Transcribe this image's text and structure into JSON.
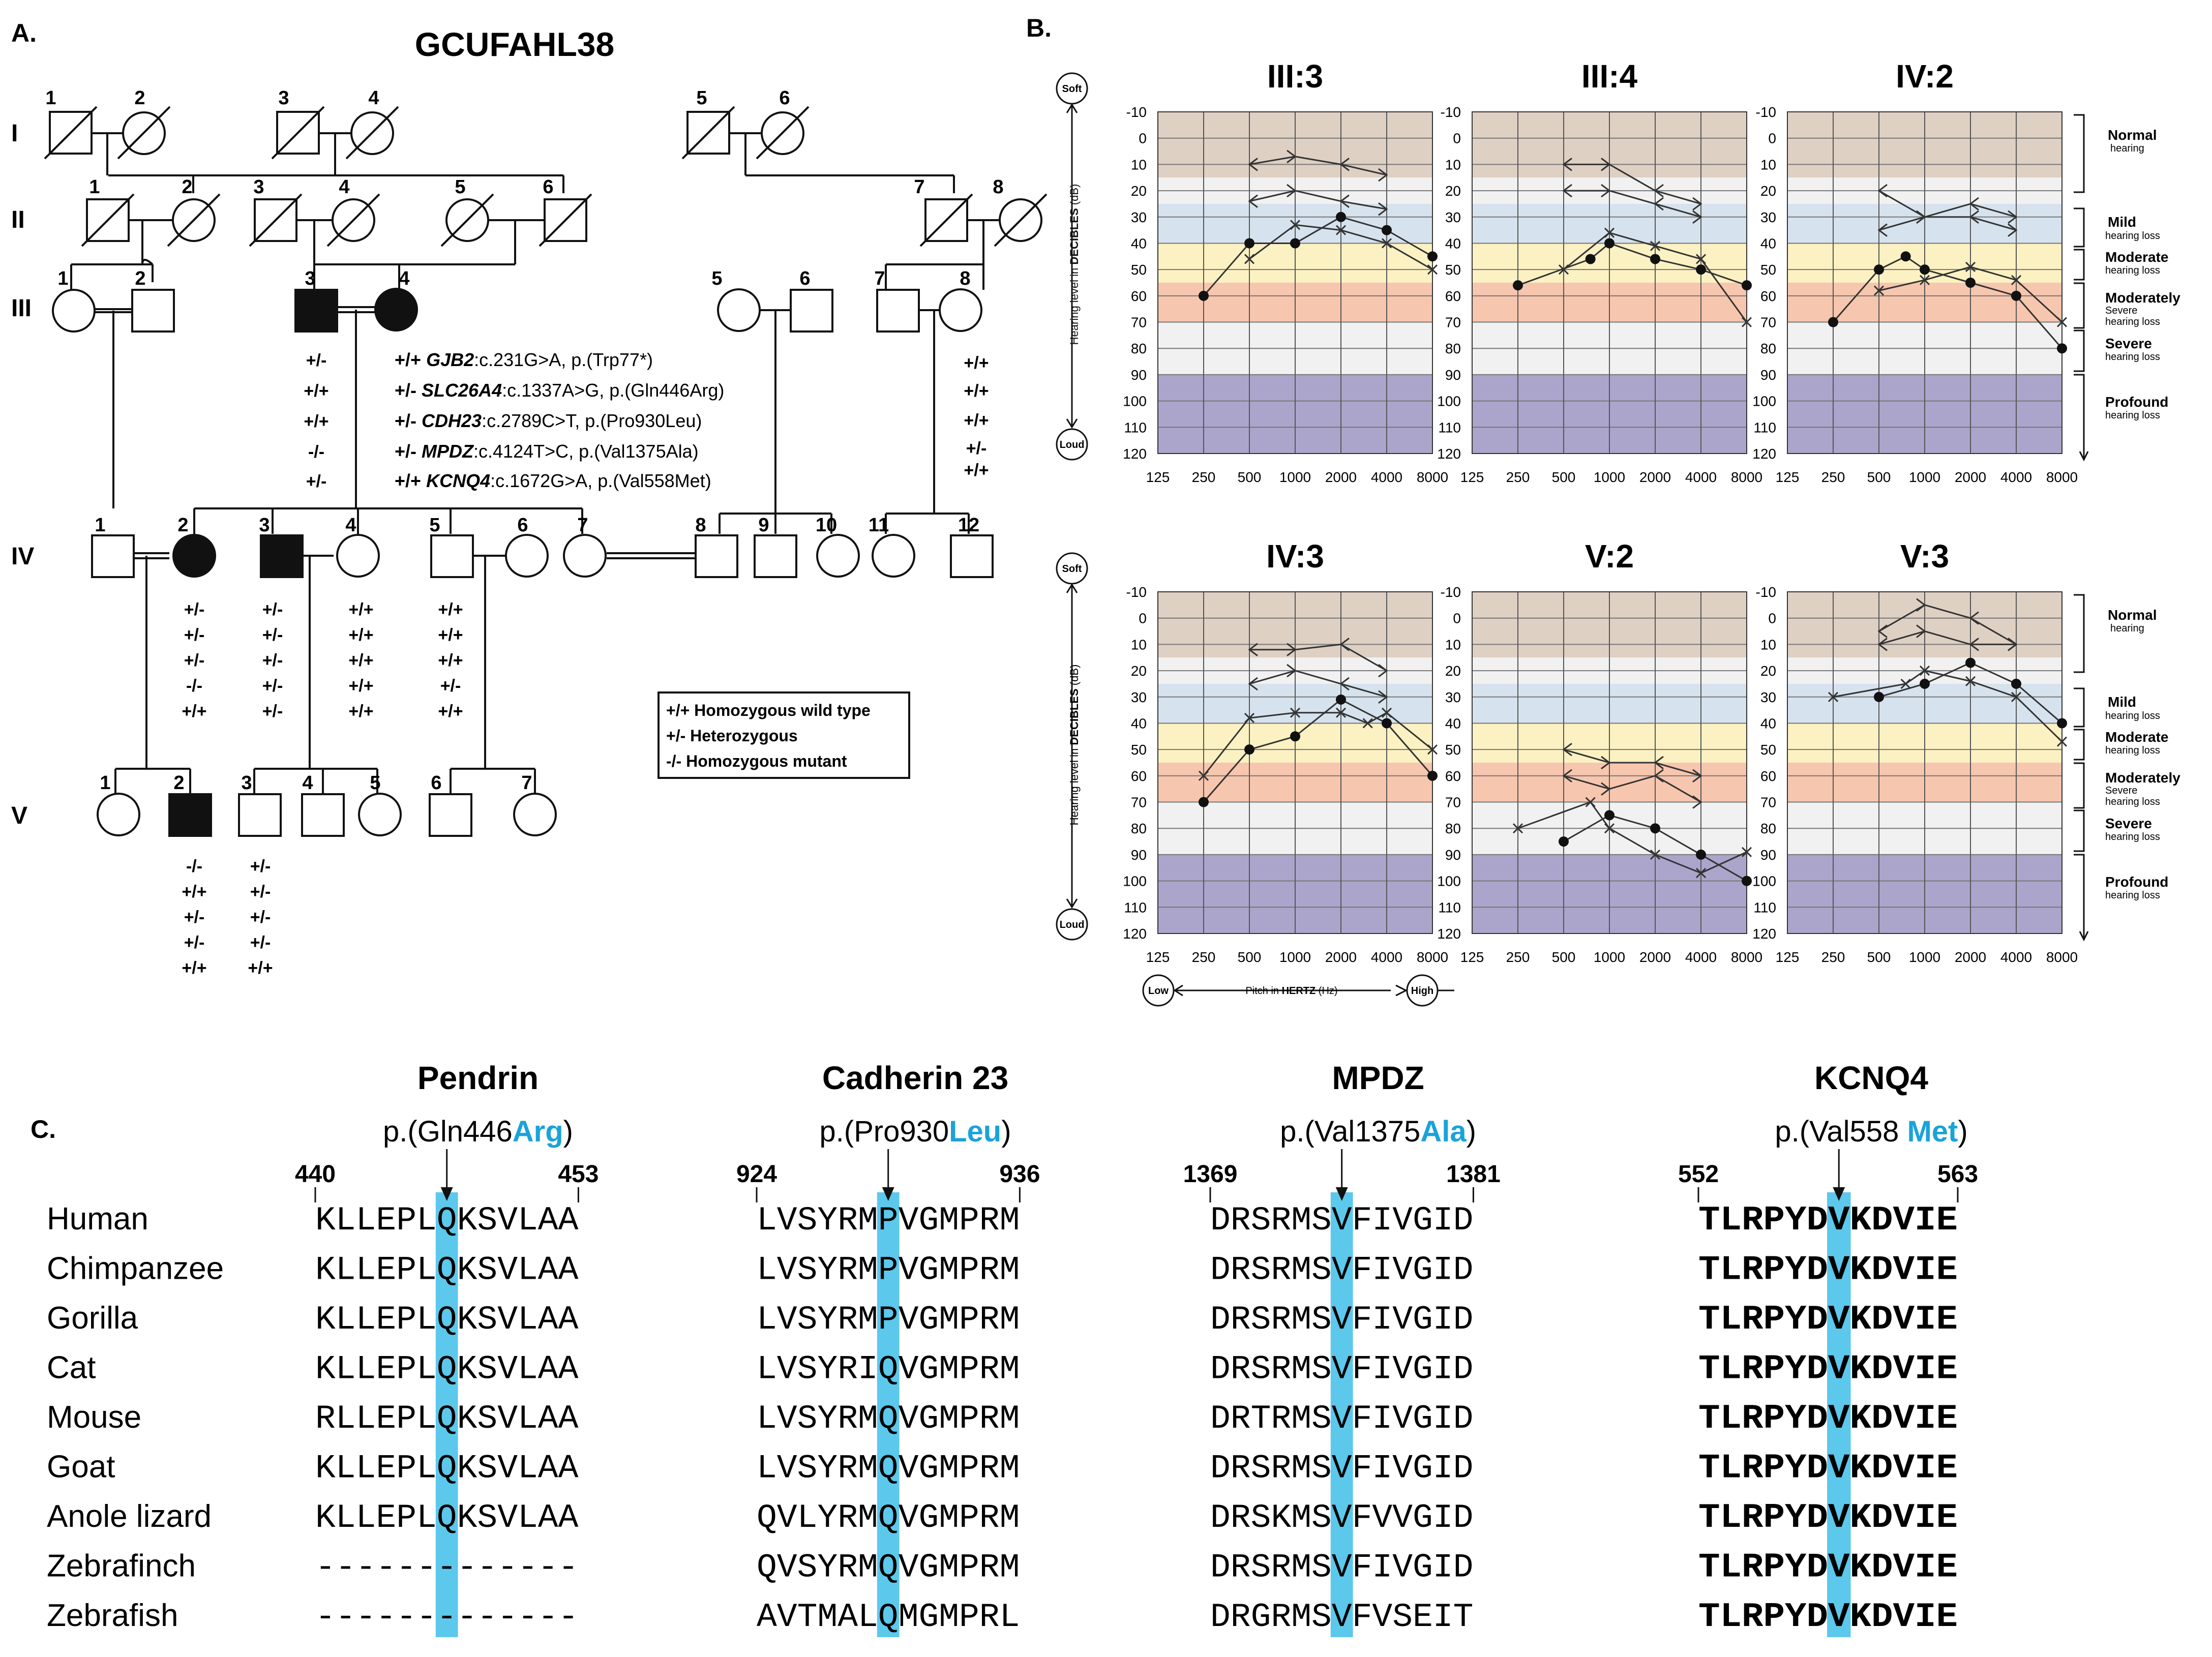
{
  "figure": {
    "panel_labels": {
      "a": "A.",
      "b": "B.",
      "c": "C."
    }
  },
  "pedigree": {
    "family_id": "GCUFAHL38",
    "generations": [
      "I",
      "II",
      "III",
      "IV",
      "V"
    ],
    "individual_numbers": {
      "I": [
        "1",
        "2",
        "3",
        "4",
        "5",
        "6"
      ],
      "II": [
        "1",
        "2",
        "3",
        "4",
        "5",
        "6",
        "7",
        "8"
      ],
      "III": [
        "1",
        "2",
        "3",
        "4",
        "5",
        "6",
        "7",
        "8"
      ],
      "IV": [
        "1",
        "2",
        "3",
        "4",
        "5",
        "6",
        "7",
        "8",
        "9",
        "10",
        "11",
        "12"
      ],
      "V": [
        "1",
        "2",
        "3",
        "4",
        "5",
        "6",
        "7"
      ]
    },
    "variants": [
      {
        "gene": "GJB2",
        "change": ":c.231G>A, p.(Trp77*)",
        "proband_genotype": "+/+"
      },
      {
        "gene": "SLC26A4",
        "change": ":c.1337A>G, p.(Gln446Arg)",
        "proband_genotype": "+/-"
      },
      {
        "gene": "CDH23",
        "change": ":c.2789C>T, p.(Pro930Leu)",
        "proband_genotype": "+/-"
      },
      {
        "gene": "MPDZ",
        "change": ":c.4124T>C, p.(Val1375Ala)",
        "proband_genotype": "+/-"
      },
      {
        "gene": "KCNQ4",
        "change": ":c.1672G>A, p.(Val558Met)",
        "proband_genotype": "+/+"
      }
    ],
    "genotypes": {
      "III3": [
        "+/-",
        "+/+",
        "+/+",
        "-/-",
        "+/-"
      ],
      "III8": [
        "+/+",
        "+/+",
        "+/+",
        "+/-",
        "+/+"
      ],
      "IV2": [
        "+/-",
        "+/-",
        "+/-",
        "-/-",
        "+/+"
      ],
      "IV3": [
        "+/-",
        "+/-",
        "+/-",
        "+/-",
        "+/-"
      ],
      "IV4": [
        "+/+",
        "+/+",
        "+/+",
        "+/+",
        "+/+"
      ],
      "IV5": [
        "+/+",
        "+/+",
        "+/+",
        "+/-",
        "+/+"
      ],
      "V2": [
        "-/-",
        "+/+",
        "+/-",
        "+/-",
        "+/+"
      ],
      "V3": [
        "+/-",
        "+/-",
        "+/-",
        "+/-",
        "+/+"
      ]
    },
    "legend": [
      {
        "symbol": "+/+",
        "text": "Homozygous wild type"
      },
      {
        "symbol": "+/-",
        "text": "Heterozygous"
      },
      {
        "symbol": "-/-",
        "text": "Homozygous mutant"
      }
    ]
  },
  "audiogram_labels": {
    "y_axis_title_prefix": "Hearing level in ",
    "y_axis_title_bold": "DECIBLES",
    "y_axis_title_suffix": " (dB)",
    "soft": "Soft",
    "loud": "Loud",
    "x_axis_prefix": "Pitch in ",
    "x_axis_bold": "HERTZ",
    "x_axis_suffix": " (Hz)",
    "low": "Low",
    "high": "High",
    "y_ticks": [
      "-10",
      "0",
      "10",
      "20",
      "30",
      "40",
      "50",
      "60",
      "70",
      "80",
      "90",
      "100",
      "110",
      "120"
    ],
    "x_ticks": [
      "125",
      "250",
      "500",
      "1000",
      "2000",
      "4000",
      "8000"
    ]
  },
  "hearing_categories": [
    {
      "title": "Normal",
      "sub": "hearing"
    },
    {
      "title": "Mild",
      "sub": "hearing loss"
    },
    {
      "title": "Moderate",
      "sub": "hearing loss"
    },
    {
      "title": "Moderately",
      "sub": "Severe",
      "sub2": "hearing loss"
    },
    {
      "title": "Severe",
      "sub": "hearing loss"
    },
    {
      "title": "Profound",
      "sub": "hearing loss"
    }
  ],
  "chart_data": [
    {
      "type": "line",
      "title": "III:3",
      "xlabel": "Pitch in HERTZ (Hz)",
      "ylabel": "Hearing level in DECIBLES (dB)",
      "x": [
        250,
        500,
        1000,
        2000,
        4000,
        8000
      ],
      "ylim": [
        -10,
        120
      ],
      "series": [
        {
          "name": "air-dot",
          "marker": "dot",
          "points": [
            [
              250,
              60
            ],
            [
              500,
              40
            ],
            [
              1000,
              40
            ],
            [
              2000,
              30
            ],
            [
              4000,
              35
            ],
            [
              8000,
              45
            ]
          ]
        },
        {
          "name": "air-x",
          "marker": "x",
          "points": [
            [
              500,
              46
            ],
            [
              1000,
              33
            ],
            [
              2000,
              35
            ],
            [
              4000,
              40
            ],
            [
              8000,
              50
            ]
          ]
        },
        {
          "name": "bone-1",
          "marker": "arrow",
          "points": [
            [
              500,
              10
            ],
            [
              1000,
              7
            ],
            [
              2000,
              10
            ],
            [
              4000,
              14
            ]
          ]
        },
        {
          "name": "bone-2",
          "marker": "arrow",
          "points": [
            [
              500,
              24
            ],
            [
              1000,
              20
            ],
            [
              2000,
              24
            ],
            [
              4000,
              27
            ]
          ]
        }
      ]
    },
    {
      "type": "line",
      "title": "III:4",
      "xlabel": "Pitch in HERTZ (Hz)",
      "ylabel": "Hearing level in DECIBLES (dB)",
      "x": [
        250,
        500,
        1000,
        2000,
        4000,
        8000
      ],
      "ylim": [
        -10,
        120
      ],
      "series": [
        {
          "name": "air-dot",
          "marker": "dot",
          "points": [
            [
              250,
              56
            ],
            [
              750,
              46
            ],
            [
              1000,
              40
            ],
            [
              2000,
              46
            ],
            [
              4000,
              50
            ],
            [
              8000,
              56
            ]
          ]
        },
        {
          "name": "air-x",
          "marker": "x",
          "points": [
            [
              500,
              50
            ],
            [
              1000,
              36
            ],
            [
              2000,
              41
            ],
            [
              4000,
              46
            ],
            [
              8000,
              70
            ]
          ]
        },
        {
          "name": "bone-1",
          "marker": "arrow",
          "points": [
            [
              500,
              10
            ],
            [
              1000,
              10
            ],
            [
              2000,
              20
            ],
            [
              4000,
              25
            ]
          ]
        },
        {
          "name": "bone-2",
          "marker": "arrow",
          "points": [
            [
              500,
              20
            ],
            [
              1000,
              20
            ],
            [
              2000,
              25
            ],
            [
              4000,
              30
            ]
          ]
        }
      ]
    },
    {
      "type": "line",
      "title": "IV:2",
      "xlabel": "Pitch in HERTZ (Hz)",
      "ylabel": "Hearing level in DECIBLES (dB)",
      "x": [
        250,
        500,
        1000,
        2000,
        4000,
        8000
      ],
      "ylim": [
        -10,
        120
      ],
      "series": [
        {
          "name": "air-dot",
          "marker": "dot",
          "points": [
            [
              250,
              70
            ],
            [
              500,
              50
            ],
            [
              750,
              45
            ],
            [
              1000,
              50
            ],
            [
              2000,
              55
            ],
            [
              4000,
              60
            ],
            [
              8000,
              80
            ]
          ]
        },
        {
          "name": "air-x",
          "marker": "x",
          "points": [
            [
              500,
              58
            ],
            [
              1000,
              54
            ],
            [
              2000,
              49
            ],
            [
              4000,
              54
            ],
            [
              8000,
              70
            ]
          ]
        },
        {
          "name": "bone-1",
          "marker": "arrow",
          "points": [
            [
              500,
              20
            ],
            [
              1000,
              30
            ],
            [
              2000,
              25
            ],
            [
              4000,
              30
            ]
          ]
        },
        {
          "name": "bone-2",
          "marker": "arrow",
          "points": [
            [
              500,
              35
            ],
            [
              1000,
              30
            ],
            [
              2000,
              30
            ],
            [
              4000,
              35
            ]
          ]
        }
      ]
    },
    {
      "type": "line",
      "title": "IV:3",
      "xlabel": "Pitch in HERTZ (Hz)",
      "ylabel": "Hearing level in DECIBLES (dB)",
      "x": [
        250,
        500,
        1000,
        2000,
        4000,
        8000
      ],
      "ylim": [
        -10,
        120
      ],
      "series": [
        {
          "name": "air-dot",
          "marker": "dot",
          "points": [
            [
              250,
              70
            ],
            [
              500,
              50
            ],
            [
              1000,
              45
            ],
            [
              2000,
              31
            ],
            [
              4000,
              40
            ],
            [
              8000,
              60
            ]
          ]
        },
        {
          "name": "air-x",
          "marker": "x",
          "points": [
            [
              250,
              60
            ],
            [
              500,
              38
            ],
            [
              1000,
              36
            ],
            [
              2000,
              36
            ],
            [
              3000,
              40
            ],
            [
              4000,
              36
            ],
            [
              8000,
              50
            ]
          ]
        },
        {
          "name": "bone-1",
          "marker": "arrow",
          "points": [
            [
              500,
              12
            ],
            [
              1000,
              12
            ],
            [
              2000,
              10
            ],
            [
              4000,
              20
            ]
          ]
        },
        {
          "name": "bone-2",
          "marker": "arrow",
          "points": [
            [
              500,
              25
            ],
            [
              1000,
              20
            ],
            [
              2000,
              25
            ],
            [
              4000,
              30
            ]
          ]
        }
      ]
    },
    {
      "type": "line",
      "title": "V:2",
      "xlabel": "Pitch in HERTZ (Hz)",
      "ylabel": "Hearing level in DECIBLES (dB)",
      "x": [
        250,
        500,
        1000,
        2000,
        4000,
        8000
      ],
      "ylim": [
        -10,
        120
      ],
      "series": [
        {
          "name": "air-dot",
          "marker": "dot",
          "points": [
            [
              500,
              85
            ],
            [
              1000,
              75
            ],
            [
              2000,
              80
            ],
            [
              4000,
              90
            ],
            [
              8000,
              100
            ]
          ]
        },
        {
          "name": "air-x",
          "marker": "x",
          "points": [
            [
              250,
              80
            ],
            [
              750,
              70
            ],
            [
              1000,
              80
            ],
            [
              2000,
              90
            ],
            [
              4000,
              97
            ],
            [
              8000,
              89
            ]
          ]
        },
        {
          "name": "bone-1",
          "marker": "arrow",
          "points": [
            [
              500,
              50
            ],
            [
              1000,
              55
            ],
            [
              2000,
              55
            ],
            [
              4000,
              60
            ]
          ]
        },
        {
          "name": "bone-2",
          "marker": "arrow",
          "points": [
            [
              500,
              60
            ],
            [
              1000,
              65
            ],
            [
              2000,
              60
            ],
            [
              4000,
              70
            ]
          ]
        }
      ]
    },
    {
      "type": "line",
      "title": "V:3",
      "xlabel": "Pitch in HERTZ (Hz)",
      "ylabel": "Hearing level in DECIBLES (dB)",
      "x": [
        250,
        500,
        1000,
        2000,
        4000,
        8000
      ],
      "ylim": [
        -10,
        120
      ],
      "series": [
        {
          "name": "air-dot",
          "marker": "dot",
          "points": [
            [
              500,
              30
            ],
            [
              1000,
              25
            ],
            [
              2000,
              17
            ],
            [
              4000,
              25
            ],
            [
              8000,
              40
            ]
          ]
        },
        {
          "name": "air-x",
          "marker": "x",
          "points": [
            [
              250,
              30
            ],
            [
              750,
              25
            ],
            [
              1000,
              20
            ],
            [
              2000,
              24
            ],
            [
              4000,
              30
            ],
            [
              8000,
              47
            ]
          ]
        },
        {
          "name": "bone-1",
          "marker": "arrow",
          "points": [
            [
              500,
              5
            ],
            [
              1000,
              -5
            ],
            [
              2000,
              0
            ],
            [
              4000,
              10
            ]
          ]
        },
        {
          "name": "bone-2",
          "marker": "arrow",
          "points": [
            [
              500,
              10
            ],
            [
              1000,
              5
            ],
            [
              2000,
              10
            ],
            [
              4000,
              10
            ]
          ]
        }
      ]
    }
  ],
  "alignment": {
    "species": [
      "Human",
      "Chimpanzee",
      "Gorilla",
      "Cat",
      "Mouse",
      "Goat",
      "Anole lizard",
      "Zebrafinch",
      "Zebrafish"
    ],
    "blocks": [
      {
        "gene": "Pendrin",
        "variant_prefix": "p.(Gln446",
        "variant_alt": "Arg",
        "variant_suffix": ")",
        "start": "440",
        "end": "453",
        "highlight_col": 6,
        "seqs": [
          "KLLEPLQKSVLAA",
          "KLLEPLQKSVLAA",
          "KLLEPLQKSVLAA",
          "KLLEPLQKSVLAA",
          "RLLEPLQKSVLAA",
          "KLLEPLQKSVLAA",
          "KLLEPLQKSVLAA",
          "-------------",
          "-------------"
        ]
      },
      {
        "gene": "Cadherin 23",
        "variant_prefix": "p.(Pro930",
        "variant_alt": "Leu",
        "variant_suffix": ")",
        "start": "924",
        "end": "936",
        "highlight_col": 6,
        "seqs": [
          "LVSYRMPVGMPRM",
          "LVSYRMPVGMPRM",
          "LVSYRMPVGMPRM",
          "LVSYRIQVGMPRM",
          "LVSYRMQVGMPRM",
          "LVSYRMQVGMPRM",
          "QVLYRMQVGMPRM",
          "QVSYRMQVGMPRM",
          "AVTMALQMGMPRL"
        ]
      },
      {
        "gene": "MPDZ",
        "variant_prefix": "p.(Val1375",
        "variant_alt": "Ala",
        "variant_suffix": ")",
        "start": "1369",
        "end": "1381",
        "highlight_col": 6,
        "seqs": [
          "DRSRMSVFIVGID",
          "DRSRMSVFIVGID",
          "DRSRMSVFIVGID",
          "DRSRMSVFIVGID",
          "DRTRMSVFIVGID",
          "DRSRMSVFIVGID",
          "DRSKMSVFVVGID",
          "DRSRMSVFIVGID",
          "DRGRMSVFVSEIT"
        ]
      },
      {
        "gene": "KCNQ4",
        "variant_prefix": "p.(Val558 ",
        "variant_alt": "Met",
        "variant_suffix": ")",
        "start": "552",
        "end": "563",
        "highlight_col": 6,
        "seqs": [
          "TLRPYDVKDVIE",
          "TLRPYDVKDVIE",
          "TLRPYDVKDVIE",
          "TLRPYDVKDVIE",
          "TLRPYDVKDVIE",
          "TLRPYDVKDVIE",
          "TLRPYDVKDVIE",
          "TLRPYDVKDVIE",
          "TLRPYDVKDVIE"
        ]
      }
    ]
  },
  "colors": {
    "highlight": "#5cc8ec",
    "variant_alt": "#1aa3d9",
    "band_normal": "#dfd0c4",
    "band_light": "#f1f1f1",
    "band_mild": "#d6e3ee",
    "band_moderate": "#fbf1c2",
    "band_modsevere": "#f7c6ae",
    "band_profound": "#aba5cc"
  }
}
